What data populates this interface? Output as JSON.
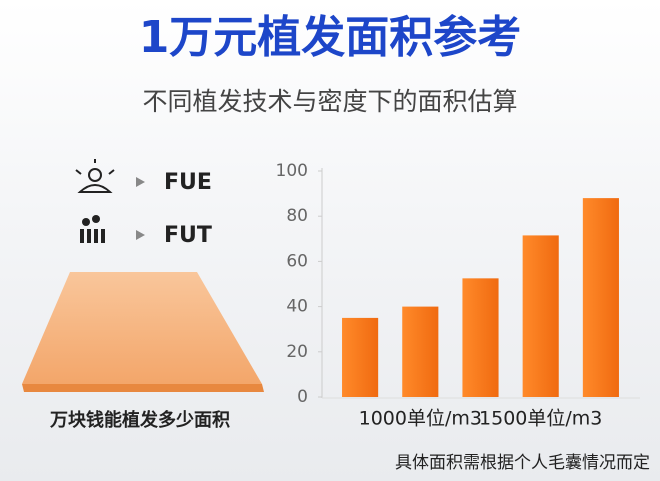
{
  "chart_data": {
    "type": "bar",
    "title": "1万元植发面积参考",
    "subtitle": "不同植发技术与密度下的面积估算",
    "categories": [
      null,
      "1000单位/m3",
      null,
      "1500单位/m3",
      null
    ],
    "values": [
      35,
      40,
      52.5,
      71.5,
      88
    ],
    "color": "#f47a1c",
    "ylim": [
      0,
      100
    ],
    "yticks": [
      0,
      20,
      40,
      60,
      80,
      100
    ],
    "grid": false,
    "note": "具体面积需根据个人毛囊情况而定"
  },
  "illustration": {
    "methods": [
      "FUE",
      "FUT"
    ],
    "caption": "万块钱能植发多少面积"
  }
}
